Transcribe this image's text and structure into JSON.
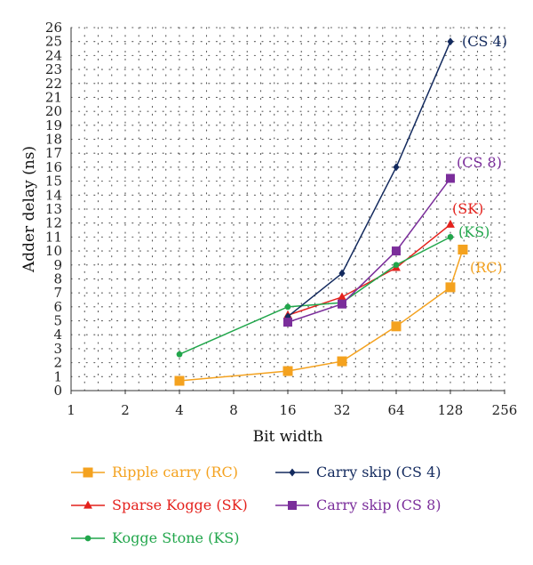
{
  "chart_data": {
    "type": "line",
    "xlabel": "Bit width",
    "ylabel": "Adder delay (ns)",
    "x_scale": "log2",
    "x_ticks": [
      "1",
      "2",
      "4",
      "8",
      "16",
      "32",
      "64",
      "128",
      "256"
    ],
    "x_tick_values": [
      1,
      2,
      4,
      8,
      16,
      32,
      64,
      128,
      256
    ],
    "ylim": [
      0,
      26
    ],
    "y_ticks": [
      "0",
      "1",
      "2",
      "3",
      "4",
      "5",
      "6",
      "7",
      "8",
      "9",
      "10",
      "11",
      "12",
      "13",
      "14",
      "15",
      "16",
      "17",
      "18",
      "19",
      "20",
      "21",
      "22",
      "23",
      "24",
      "25",
      "26"
    ],
    "grid": "dotted",
    "legend_position": "bottom",
    "series": [
      {
        "name": "Ripple carry (RC)",
        "annotation": "(RC)",
        "color": "#f4a21f",
        "marker": "square",
        "x": [
          4,
          16,
          32,
          64,
          128,
          150
        ],
        "y": [
          0.7,
          1.4,
          2.1,
          4.6,
          7.4,
          10.1
        ]
      },
      {
        "name": "Sparse Kogge (SK)",
        "annotation": "(SK)",
        "color": "#e4211c",
        "marker": "triangle",
        "x": [
          16,
          32,
          64,
          128
        ],
        "y": [
          5.4,
          6.7,
          8.8,
          11.9
        ]
      },
      {
        "name": "Kogge Stone (KS)",
        "annotation": "(KS)",
        "color": "#21a64b",
        "marker": "circle",
        "x": [
          4,
          16,
          32,
          64,
          128
        ],
        "y": [
          2.6,
          6.0,
          6.3,
          9.0,
          11.0
        ]
      },
      {
        "name": "Carry skip (CS 4)",
        "annotation": "(CS 4)",
        "color": "#132a5e",
        "marker": "diamond",
        "x": [
          16,
          32,
          64,
          128
        ],
        "y": [
          5.3,
          8.4,
          16.0,
          25.0
        ]
      },
      {
        "name": "Carry skip (CS 8)",
        "annotation": "(CS 8)",
        "color": "#7b2e9b",
        "marker": "square",
        "x": [
          16,
          32,
          64,
          128
        ],
        "y": [
          4.9,
          6.2,
          10.0,
          15.2
        ]
      }
    ]
  }
}
